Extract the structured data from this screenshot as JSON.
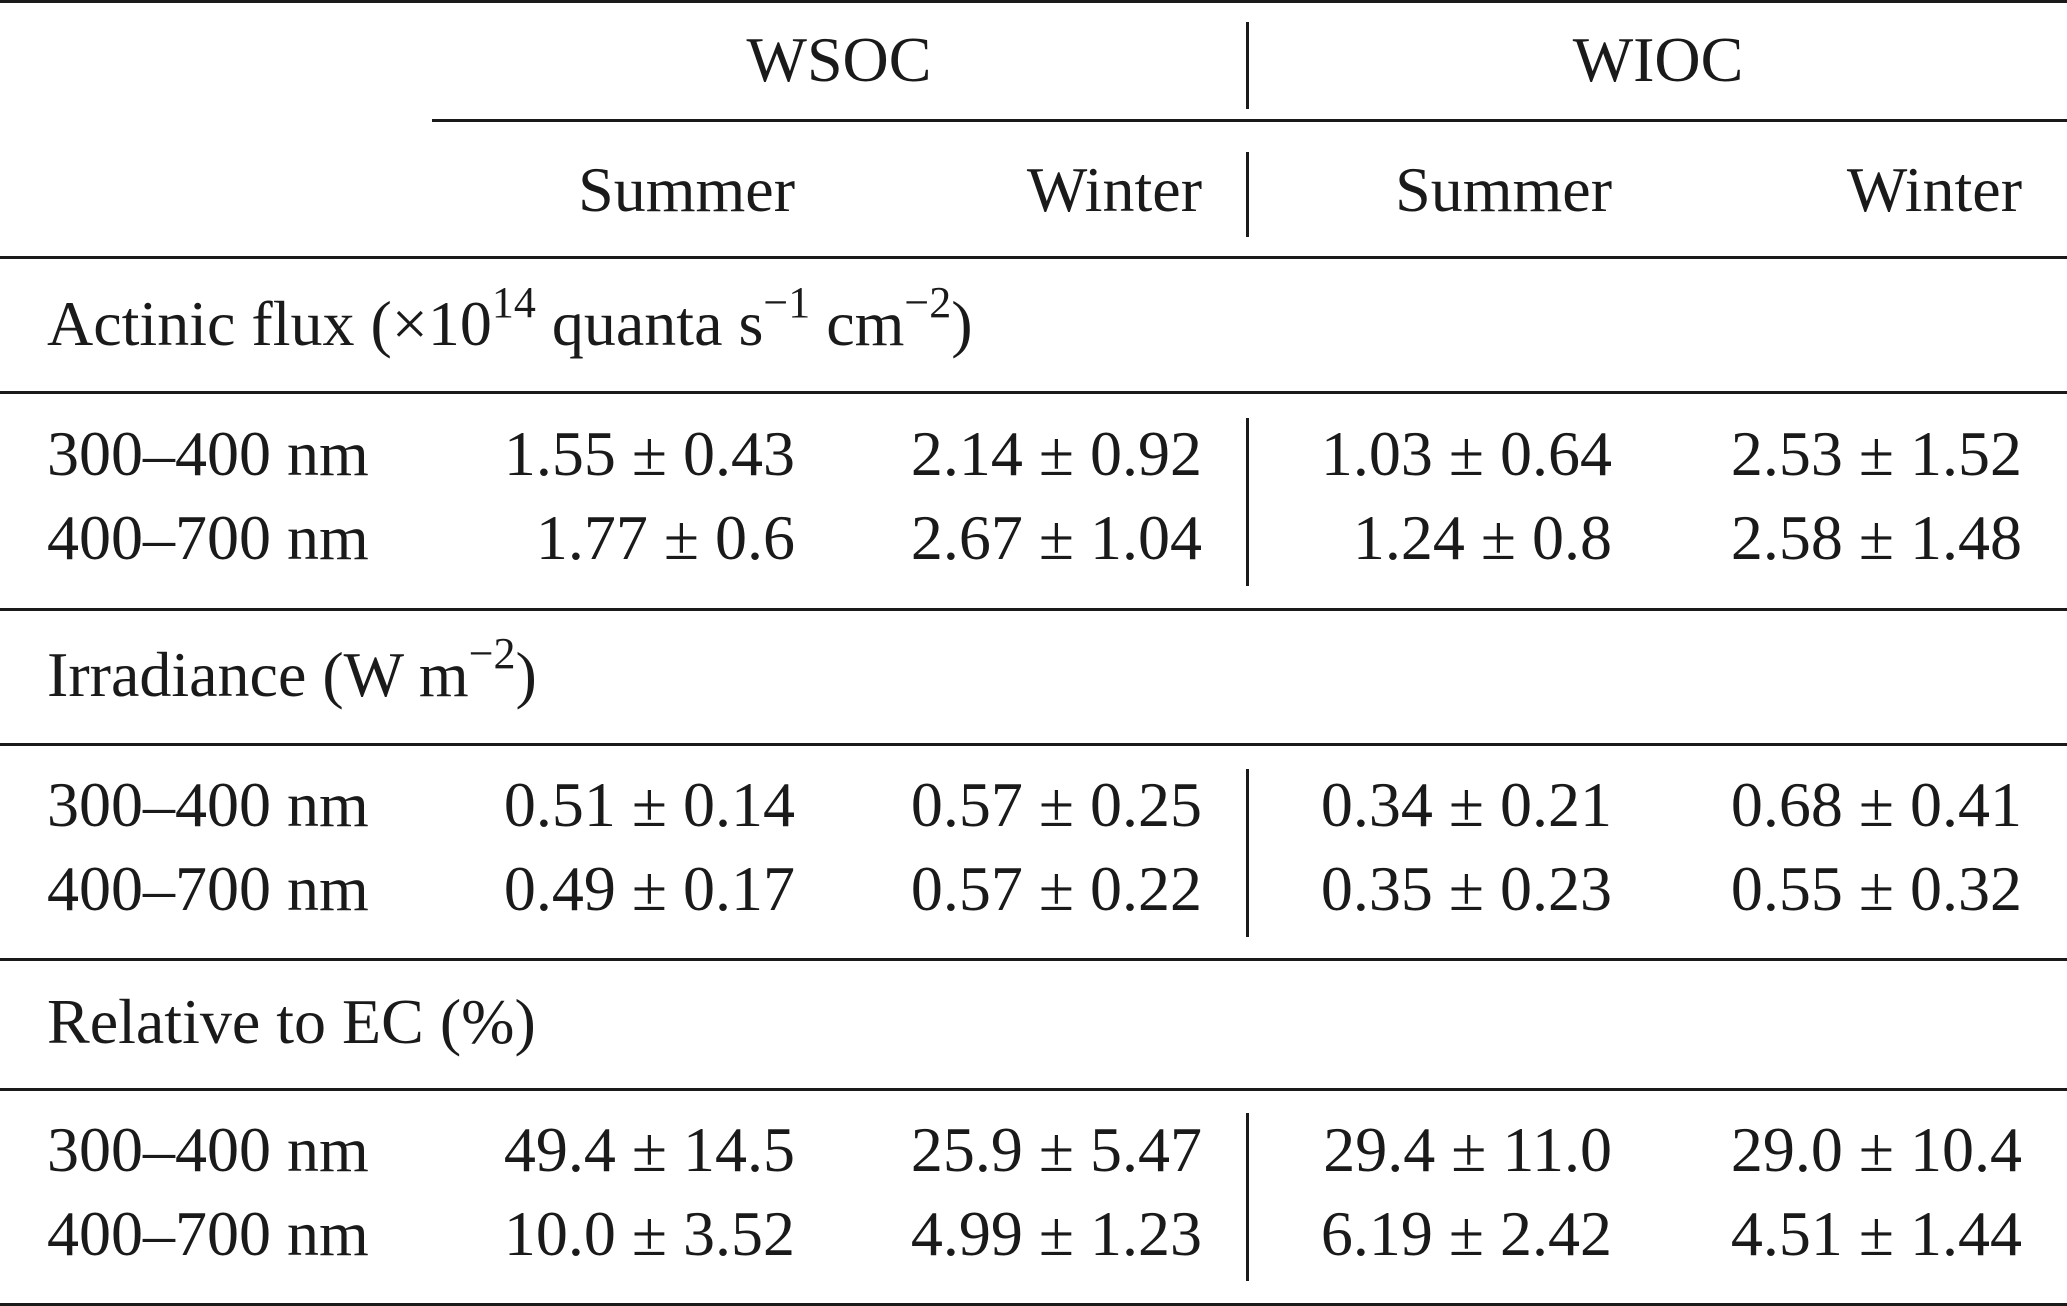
{
  "header": {
    "groups": [
      "WSOC",
      "WIOC"
    ],
    "seasons": [
      "Summer",
      "Winter",
      "Summer",
      "Winter"
    ]
  },
  "sections": [
    {
      "title_main": "Actinic flux (×10",
      "title_sup1": "14",
      "title_mid": " quanta s",
      "title_sup2": "−1",
      "title_mid2": " cm",
      "title_sup3": "−2",
      "title_end": ")",
      "rows": [
        {
          "label": "300–400 nm",
          "values": [
            "1.55 ± 0.43",
            "2.14 ± 0.92",
            "1.03 ± 0.64",
            "2.53 ± 1.52"
          ]
        },
        {
          "label": "400–700 nm",
          "values": [
            "1.77 ± 0.6",
            "2.67 ± 1.04",
            "1.24 ± 0.8",
            "2.58 ± 1.48"
          ]
        }
      ]
    },
    {
      "title_main": "Irradiance (W m",
      "title_sup1": "−2",
      "title_end": ")",
      "rows": [
        {
          "label": "300–400 nm",
          "values": [
            "0.51 ± 0.14",
            "0.57 ± 0.25",
            "0.34 ± 0.21",
            "0.68 ± 0.41"
          ]
        },
        {
          "label": "400–700 nm",
          "values": [
            "0.49 ± 0.17",
            "0.57 ± 0.22",
            "0.35 ± 0.23",
            "0.55 ± 0.32"
          ]
        }
      ]
    },
    {
      "title_main": "Relative to EC (%)",
      "rows": [
        {
          "label": "300–400 nm",
          "values": [
            "49.4 ± 14.5",
            "25.9 ± 5.47",
            "29.4 ± 11.0",
            "29.0 ± 10.4"
          ]
        },
        {
          "label": "400–700 nm",
          "values": [
            "10.0 ± 3.52",
            "4.99 ± 1.23",
            "6.19 ± 2.42",
            "4.51 ± 1.44"
          ]
        }
      ]
    }
  ]
}
